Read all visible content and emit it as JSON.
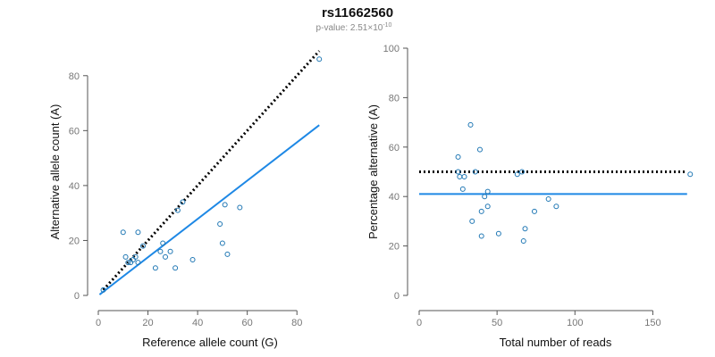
{
  "colors": {
    "points": "#1f77b4",
    "fit_line": "#1e88e5",
    "reference_line": "#000000",
    "axis": "#555555"
  },
  "header": {
    "title": "rs11662560",
    "subtitle_prefix": "p-value: 2.51×10",
    "subtitle_exponent": "-10"
  },
  "chart_data": [
    {
      "type": "scatter",
      "xlabel": "Reference allele count (G)",
      "ylabel": "Alternative allele count (A)",
      "xlim": [
        0,
        90
      ],
      "ylim": [
        0,
        90
      ],
      "xticks": [
        0,
        20,
        40,
        60,
        80
      ],
      "yticks": [
        0,
        20,
        40,
        60,
        80
      ],
      "grid": false,
      "points": [
        {
          "x": 2,
          "y": 2
        },
        {
          "x": 10,
          "y": 23
        },
        {
          "x": 11,
          "y": 14
        },
        {
          "x": 12,
          "y": 12
        },
        {
          "x": 13,
          "y": 12
        },
        {
          "x": 14,
          "y": 13
        },
        {
          "x": 15,
          "y": 14
        },
        {
          "x": 16,
          "y": 23
        },
        {
          "x": 16,
          "y": 12
        },
        {
          "x": 18,
          "y": 18
        },
        {
          "x": 23,
          "y": 10
        },
        {
          "x": 25,
          "y": 16
        },
        {
          "x": 26,
          "y": 19
        },
        {
          "x": 27,
          "y": 14
        },
        {
          "x": 29,
          "y": 16
        },
        {
          "x": 31,
          "y": 10
        },
        {
          "x": 32,
          "y": 31
        },
        {
          "x": 34,
          "y": 34
        },
        {
          "x": 38,
          "y": 13
        },
        {
          "x": 49,
          "y": 26
        },
        {
          "x": 50,
          "y": 19
        },
        {
          "x": 51,
          "y": 33
        },
        {
          "x": 52,
          "y": 15
        },
        {
          "x": 57,
          "y": 32
        },
        {
          "x": 89,
          "y": 86
        }
      ],
      "lines": [
        {
          "kind": "reference",
          "style": "dotted",
          "x": [
            2,
            89
          ],
          "y": [
            2,
            89
          ]
        },
        {
          "kind": "fit",
          "style": "solid",
          "x": [
            0.5,
            89
          ],
          "y": [
            0.3,
            62
          ]
        }
      ]
    },
    {
      "type": "scatter",
      "xlabel": "Total number of reads",
      "ylabel": "Percentage alternative (A)",
      "xlim": [
        0,
        175
      ],
      "ylim": [
        0,
        100
      ],
      "xticks": [
        0,
        50,
        100,
        150
      ],
      "yticks": [
        0,
        20,
        40,
        60,
        80,
        100
      ],
      "grid": false,
      "points": [
        {
          "x": 25,
          "y": 50
        },
        {
          "x": 25,
          "y": 56
        },
        {
          "x": 26,
          "y": 48
        },
        {
          "x": 28,
          "y": 43
        },
        {
          "x": 29,
          "y": 48
        },
        {
          "x": 33,
          "y": 69
        },
        {
          "x": 34,
          "y": 30
        },
        {
          "x": 36,
          "y": 50
        },
        {
          "x": 39,
          "y": 59
        },
        {
          "x": 40,
          "y": 34
        },
        {
          "x": 40,
          "y": 24
        },
        {
          "x": 42,
          "y": 40
        },
        {
          "x": 44,
          "y": 42
        },
        {
          "x": 44,
          "y": 36
        },
        {
          "x": 51,
          "y": 25
        },
        {
          "x": 63,
          "y": 49
        },
        {
          "x": 66,
          "y": 50
        },
        {
          "x": 67,
          "y": 22
        },
        {
          "x": 68,
          "y": 27
        },
        {
          "x": 74,
          "y": 34
        },
        {
          "x": 83,
          "y": 39
        },
        {
          "x": 88,
          "y": 36
        },
        {
          "x": 174,
          "y": 49
        }
      ],
      "lines": [
        {
          "kind": "reference",
          "style": "dotted",
          "x": [
            0,
            172
          ],
          "y": [
            50,
            50
          ]
        },
        {
          "kind": "fit",
          "style": "solid",
          "x": [
            0,
            172
          ],
          "y": [
            41,
            41
          ]
        }
      ]
    }
  ]
}
